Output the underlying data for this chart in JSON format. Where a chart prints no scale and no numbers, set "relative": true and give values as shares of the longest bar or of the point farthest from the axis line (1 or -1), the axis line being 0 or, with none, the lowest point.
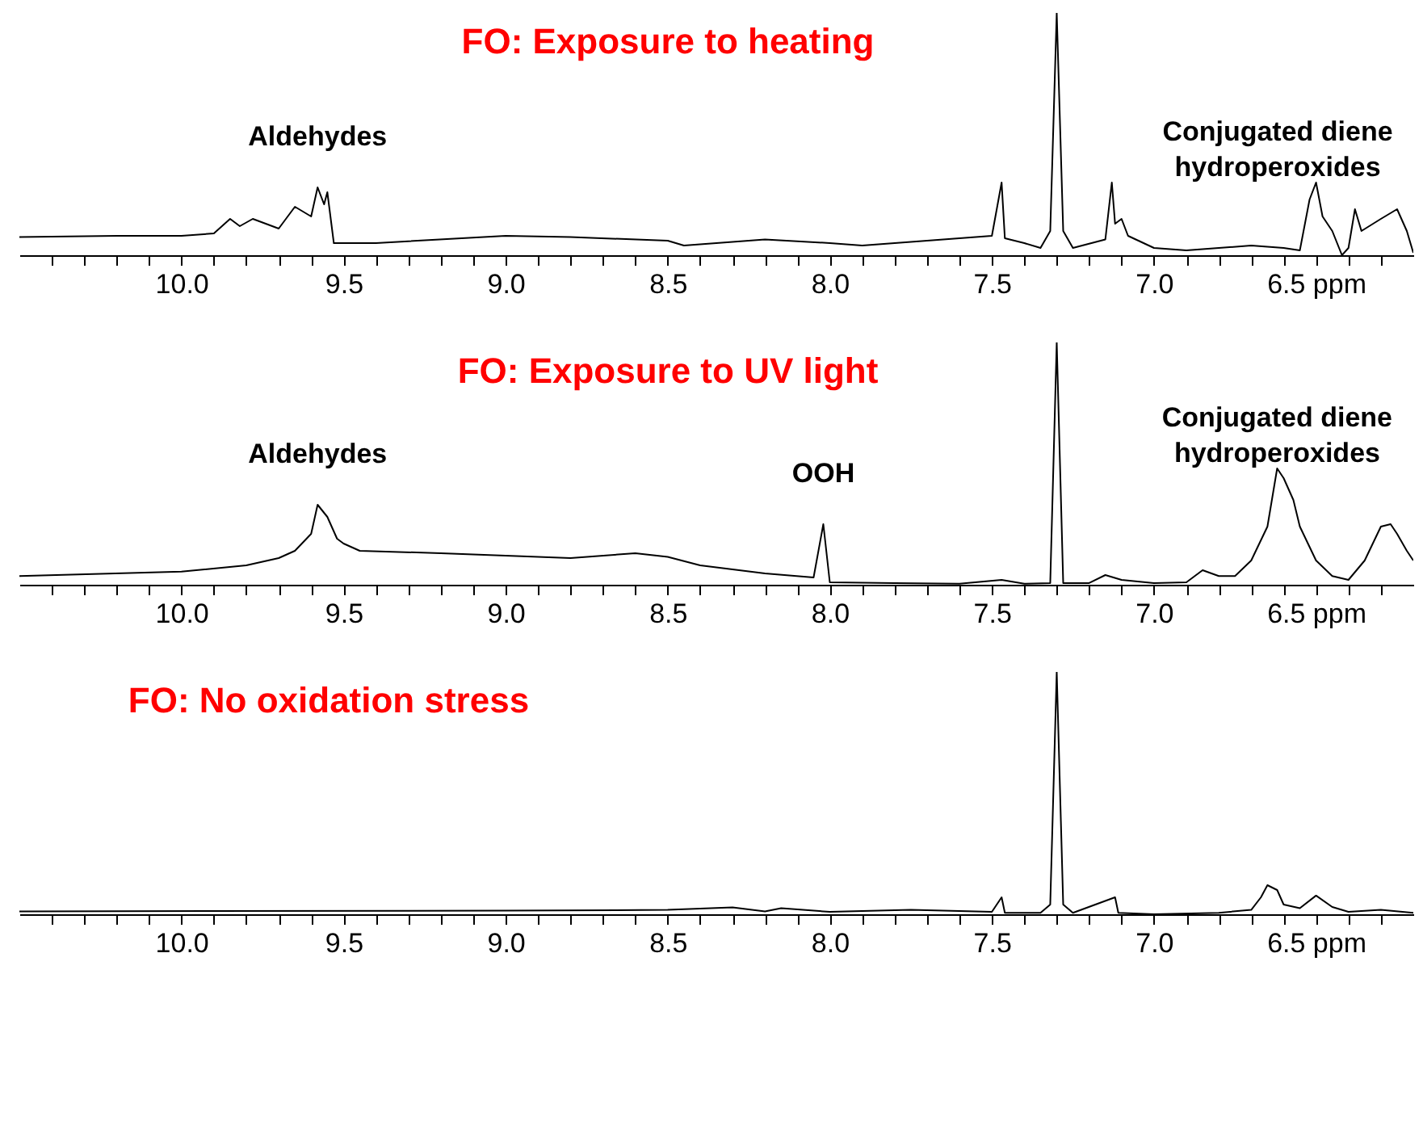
{
  "chart_data": [
    {
      "type": "line",
      "title": "FO: Exposure to heating",
      "relative": true,
      "xlim": [
        10.5,
        6.2
      ],
      "xticks": [
        {
          "value": 10.4,
          "label": null
        },
        {
          "value": 10.3,
          "label": null
        },
        {
          "value": 10.2,
          "label": null
        },
        {
          "value": 10.1,
          "label": null
        },
        {
          "value": 10,
          "label": "10.0"
        },
        {
          "value": 9.9,
          "label": null
        },
        {
          "value": 9.8,
          "label": null
        },
        {
          "value": 9.7,
          "label": null
        },
        {
          "value": 9.6,
          "label": null
        },
        9.5,
        {
          "value": 9.4,
          "label": null
        },
        {
          "value": 9.3,
          "label": null
        },
        {
          "value": 9.2,
          "label": null
        },
        {
          "value": 9.1,
          "label": null
        },
        {
          "value": 9,
          "label": "9.0"
        },
        {
          "value": 8.9,
          "label": null
        },
        {
          "value": 8.8,
          "label": null
        },
        {
          "value": 8.7,
          "label": null
        },
        {
          "value": 8.6,
          "label": null
        },
        8.5,
        {
          "value": 8.4,
          "label": null
        },
        {
          "value": 8.3,
          "label": null
        },
        {
          "value": 8.2,
          "label": null
        },
        {
          "value": 8.1,
          "label": null
        },
        {
          "value": 8,
          "label": "8.0"
        },
        {
          "value": 7.9,
          "label": null
        },
        {
          "value": 7.8,
          "label": null
        },
        {
          "value": 7.7,
          "label": null
        },
        {
          "value": 7.6,
          "label": null
        },
        7.5,
        {
          "value": 7.4,
          "label": null
        },
        {
          "value": 7.3,
          "label": null
        },
        {
          "value": 7.2,
          "label": null
        },
        {
          "value": 7.1,
          "label": null
        },
        {
          "value": 7,
          "label": "7.0"
        },
        {
          "value": 6.9,
          "label": null
        },
        {
          "value": 6.8,
          "label": null
        },
        {
          "value": 6.7,
          "label": null
        },
        {
          "value": 6.6,
          "label": null
        },
        {
          "value": 6.5,
          "label": "6.5 ppm"
        },
        {
          "value": 6.4,
          "label": null
        },
        {
          "value": 6.3,
          "label": null
        }
      ],
      "annotations": [
        {
          "text": "Aldehydes",
          "x": 9.58,
          "y": 0.28
        },
        {
          "text": "Conjugated diene\nhydroperoxides",
          "x": 6.5,
          "y": 0.3
        }
      ],
      "series": [
        {
          "color": "#000000",
          "x": [
            10.5,
            10.2,
            10.0,
            9.9,
            9.85,
            9.82,
            9.78,
            9.7,
            9.65,
            9.6,
            9.58,
            9.56,
            9.55,
            9.53,
            9.4,
            9.0,
            8.8,
            8.5,
            8.45,
            8.2,
            8.0,
            7.9,
            7.7,
            7.5,
            7.47,
            7.46,
            7.4,
            7.35,
            7.32,
            7.3,
            7.28,
            7.25,
            7.15,
            7.13,
            7.12,
            7.1,
            7.08,
            7.0,
            6.9,
            6.8,
            6.7,
            6.6,
            6.55,
            6.52,
            6.5,
            6.48,
            6.45,
            6.42,
            6.4,
            6.38,
            6.36,
            6.3,
            6.25,
            6.22,
            6.2
          ],
          "values": [
            0.075,
            0.08,
            0.08,
            0.09,
            0.15,
            0.12,
            0.15,
            0.11,
            0.2,
            0.16,
            0.28,
            0.21,
            0.26,
            0.05,
            0.05,
            0.08,
            0.075,
            0.06,
            0.04,
            0.065,
            0.05,
            0.04,
            0.06,
            0.08,
            0.3,
            0.07,
            0.05,
            0.03,
            0.1,
            1.0,
            0.1,
            0.03,
            0.065,
            0.3,
            0.13,
            0.15,
            0.08,
            0.03,
            0.02,
            0.03,
            0.04,
            0.03,
            0.02,
            0.23,
            0.3,
            0.16,
            0.1,
            0.0,
            0.03,
            0.19,
            0.1,
            0.15,
            0.19,
            0.1,
            0.01
          ]
        }
      ]
    },
    {
      "type": "line",
      "title": "FO: Exposure to UV light",
      "relative": true,
      "xlim": [
        10.5,
        6.2
      ],
      "xticks": [
        {
          "value": 10.4,
          "label": null
        },
        {
          "value": 10.3,
          "label": null
        },
        {
          "value": 10.2,
          "label": null
        },
        {
          "value": 10.1,
          "label": null
        },
        {
          "value": 10,
          "label": "10.0"
        },
        {
          "value": 9.9,
          "label": null
        },
        {
          "value": 9.8,
          "label": null
        },
        {
          "value": 9.7,
          "label": null
        },
        {
          "value": 9.6,
          "label": null
        },
        9.5,
        {
          "value": 9.4,
          "label": null
        },
        {
          "value": 9.3,
          "label": null
        },
        {
          "value": 9.2,
          "label": null
        },
        {
          "value": 9.1,
          "label": null
        },
        {
          "value": 9,
          "label": "9.0"
        },
        {
          "value": 8.9,
          "label": null
        },
        {
          "value": 8.8,
          "label": null
        },
        {
          "value": 8.7,
          "label": null
        },
        {
          "value": 8.6,
          "label": null
        },
        8.5,
        {
          "value": 8.4,
          "label": null
        },
        {
          "value": 8.3,
          "label": null
        },
        {
          "value": 8.2,
          "label": null
        },
        {
          "value": 8.1,
          "label": null
        },
        {
          "value": 8,
          "label": "8.0"
        },
        {
          "value": 7.9,
          "label": null
        },
        {
          "value": 7.8,
          "label": null
        },
        {
          "value": 7.7,
          "label": null
        },
        {
          "value": 7.6,
          "label": null
        },
        7.5,
        {
          "value": 7.4,
          "label": null
        },
        {
          "value": 7.3,
          "label": null
        },
        {
          "value": 7.2,
          "label": null
        },
        {
          "value": 7.1,
          "label": null
        },
        {
          "value": 7,
          "label": "7.0"
        },
        {
          "value": 6.9,
          "label": null
        },
        {
          "value": 6.8,
          "label": null
        },
        {
          "value": 6.7,
          "label": null
        },
        {
          "value": 6.6,
          "label": null
        },
        {
          "value": 6.5,
          "label": "6.5 ppm"
        },
        {
          "value": 6.4,
          "label": null
        },
        {
          "value": 6.3,
          "label": null
        }
      ],
      "annotations": [
        {
          "text": "Aldehydes",
          "x": 9.58,
          "y": 0.33
        },
        {
          "text": "OOH",
          "x": 8.02,
          "y": 0.25
        },
        {
          "text": "Conjugated diene\nhydroperoxides",
          "x": 6.62,
          "y": 0.48
        }
      ],
      "series": [
        {
          "color": "#000000",
          "x": [
            10.5,
            10.0,
            9.8,
            9.7,
            9.65,
            9.6,
            9.58,
            9.55,
            9.52,
            9.5,
            9.45,
            9.2,
            9.0,
            8.8,
            8.6,
            8.5,
            8.4,
            8.2,
            8.05,
            8.02,
            8.0,
            7.8,
            7.6,
            7.47,
            7.4,
            7.32,
            7.3,
            7.28,
            7.2,
            7.15,
            7.1,
            7.0,
            6.9,
            6.85,
            6.8,
            6.75,
            6.7,
            6.65,
            6.62,
            6.6,
            6.57,
            6.55,
            6.5,
            6.45,
            6.4,
            6.35,
            6.3,
            6.27,
            6.25,
            6.22,
            6.2
          ],
          "values": [
            0.036,
            0.054,
            0.08,
            0.11,
            0.14,
            0.21,
            0.33,
            0.28,
            0.19,
            0.17,
            0.14,
            0.13,
            0.12,
            0.11,
            0.13,
            0.115,
            0.08,
            0.047,
            0.03,
            0.25,
            0.01,
            0.007,
            0.004,
            0.02,
            0.004,
            0.007,
            1.0,
            0.007,
            0.007,
            0.04,
            0.02,
            0.007,
            0.01,
            0.06,
            0.036,
            0.036,
            0.1,
            0.24,
            0.48,
            0.44,
            0.35,
            0.24,
            0.1,
            0.036,
            0.02,
            0.1,
            0.24,
            0.25,
            0.21,
            0.14,
            0.1
          ]
        }
      ]
    },
    {
      "type": "line",
      "title": "FO: No oxidation stress",
      "relative": true,
      "xlim": [
        10.5,
        6.2
      ],
      "xticks": [
        {
          "value": 10.4,
          "label": null
        },
        {
          "value": 10.3,
          "label": null
        },
        {
          "value": 10.2,
          "label": null
        },
        {
          "value": 10.1,
          "label": null
        },
        {
          "value": 10,
          "label": "10.0"
        },
        {
          "value": 9.9,
          "label": null
        },
        {
          "value": 9.8,
          "label": null
        },
        {
          "value": 9.7,
          "label": null
        },
        {
          "value": 9.6,
          "label": null
        },
        9.5,
        {
          "value": 9.4,
          "label": null
        },
        {
          "value": 9.3,
          "label": null
        },
        {
          "value": 9.2,
          "label": null
        },
        {
          "value": 9.1,
          "label": null
        },
        {
          "value": 9,
          "label": "9.0"
        },
        {
          "value": 8.9,
          "label": null
        },
        {
          "value": 8.8,
          "label": null
        },
        {
          "value": 8.7,
          "label": null
        },
        {
          "value": 8.6,
          "label": null
        },
        8.5,
        {
          "value": 8.4,
          "label": null
        },
        {
          "value": 8.3,
          "label": null
        },
        {
          "value": 8.2,
          "label": null
        },
        {
          "value": 8.1,
          "label": null
        },
        {
          "value": 8,
          "label": "8.0"
        },
        {
          "value": 7.9,
          "label": null
        },
        {
          "value": 7.8,
          "label": null
        },
        {
          "value": 7.7,
          "label": null
        },
        {
          "value": 7.6,
          "label": null
        },
        7.5,
        {
          "value": 7.4,
          "label": null
        },
        {
          "value": 7.3,
          "label": null
        },
        {
          "value": 7.2,
          "label": null
        },
        {
          "value": 7.1,
          "label": null
        },
        {
          "value": 7,
          "label": "7.0"
        },
        {
          "value": 6.9,
          "label": null
        },
        {
          "value": 6.8,
          "label": null
        },
        {
          "value": 6.7,
          "label": null
        },
        {
          "value": 6.6,
          "label": null
        },
        {
          "value": 6.5,
          "label": "6.5 ppm"
        },
        {
          "value": 6.4,
          "label": null
        },
        {
          "value": 6.3,
          "label": null
        }
      ],
      "series": [
        {
          "color": "#000000",
          "x": [
            10.5,
            9.0,
            8.5,
            8.3,
            8.2,
            8.15,
            8.0,
            7.75,
            7.5,
            7.47,
            7.46,
            7.35,
            7.32,
            7.3,
            7.28,
            7.25,
            7.12,
            7.11,
            7.0,
            6.8,
            6.7,
            6.67,
            6.65,
            6.62,
            6.6,
            6.55,
            6.5,
            6.45,
            6.4,
            6.3,
            6.2
          ],
          "values": [
            0.012,
            0.015,
            0.018,
            0.028,
            0.012,
            0.025,
            0.01,
            0.018,
            0.01,
            0.07,
            0.006,
            0.006,
            0.04,
            1.0,
            0.04,
            0.006,
            0.07,
            0.006,
            0.0,
            0.006,
            0.018,
            0.07,
            0.12,
            0.1,
            0.04,
            0.025,
            0.077,
            0.03,
            0.01,
            0.018,
            0.006
          ]
        }
      ]
    }
  ]
}
